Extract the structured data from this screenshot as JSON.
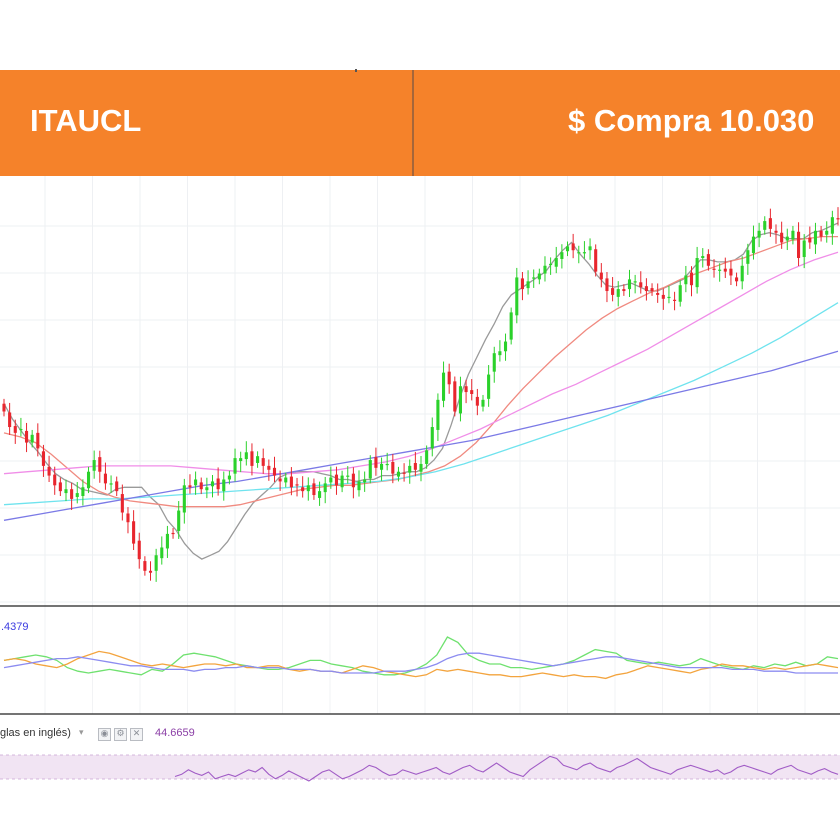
{
  "header": {
    "ticker": "ITAUCL",
    "price_label": "$ Compra 10.030"
  },
  "indicators": {
    "dmi_value": ".4379",
    "rsi_title": "glas en inglés)",
    "rsi_dropdown_icon": "chevron-down-icon",
    "rsi_value": "44.6659",
    "toolbar_icons": [
      "eye-icon",
      "gear-icon",
      "close-icon"
    ]
  },
  "colors": {
    "banner": "#f5822a",
    "up": "#2bd12b",
    "down": "#e8262e",
    "ma_fast": "#9a9a9a",
    "ma_mid": "#f08a80",
    "ma_slow": "#f08ee8",
    "ma_cyan": "#6fe3ee",
    "ma_blue": "#7b7ae6",
    "dmi_plus": "#6fe16f",
    "dmi_minus": "#f3a43e",
    "adx": "#8c8cf0",
    "rsi": "#a15cc6"
  },
  "chart_data": {
    "type": "candlestick",
    "x": [],
    "y_axis_visible": false,
    "grid": true,
    "legend": "none",
    "close": [
      54.6,
      53.8,
      53.5,
      53.7,
      53.0,
      53.4,
      52.7,
      51.8,
      51.3,
      50.8,
      50.5,
      50.6,
      50.1,
      50.4,
      50.7,
      51.5,
      52.1,
      51.5,
      50.9,
      50.9,
      50.5,
      49.4,
      48.9,
      47.8,
      47.0,
      46.4,
      46.3,
      47.2,
      47.6,
      48.3,
      48.3,
      49.5,
      50.8,
      50.7,
      51.1,
      50.6,
      50.7,
      51.0,
      50.6,
      51.1,
      51.3,
      52.2,
      52.2,
      52.5,
      51.8,
      52.3,
      51.8,
      51.6,
      51.3,
      51.0,
      51.2,
      50.7,
      50.8,
      50.5,
      50.8,
      50.3,
      50.5,
      50.9,
      51.2,
      50.8,
      51.3,
      51.3,
      50.7,
      51.0,
      51.1,
      52.1,
      51.7,
      51.9,
      51.9,
      51.4,
      51.5,
      51.4,
      51.8,
      51.6,
      51.9,
      52.6,
      53.8,
      55.2,
      56.6,
      56.0,
      54.6,
      55.9,
      55.6,
      55.5,
      54.9,
      55.2,
      56.5,
      57.6,
      57.7,
      58.2,
      59.7,
      61.5,
      60.9,
      61.3,
      61.5,
      61.7,
      62.1,
      62.2,
      62.5,
      62.8,
      63.1,
      62.9,
      62.8,
      62.8,
      63.1,
      61.8,
      61.4,
      60.8,
      60.6,
      60.9,
      60.8,
      61.4,
      61.3,
      61.0,
      60.8,
      60.8,
      60.6,
      60.4,
      60.5,
      60.3,
      61.1,
      61.6,
      61.1,
      62.5,
      62.6,
      62.1,
      61.9,
      61.9,
      61.8,
      61.6,
      61.3,
      62.1,
      62.9,
      63.6,
      63.9,
      64.4,
      64.0,
      63.8,
      63.3,
      63.6,
      63.9,
      62.5,
      63.4,
      63.3,
      63.9,
      63.6,
      63.9,
      64.6,
      64.5
    ],
    "moving_averages": [
      {
        "values": [
          55.0,
          54.2,
          53.6,
          53.0,
          52.5,
          51.9,
          51.4,
          51.1,
          50.9,
          50.6,
          50.5,
          50.4,
          50.3,
          50.6,
          50.7,
          50.7,
          50.7,
          50.2,
          49.8,
          49.0,
          48.5,
          47.8,
          47.3,
          47.0,
          47.2,
          47.4,
          47.9,
          48.6,
          49.3,
          49.9,
          50.3,
          50.7,
          51.2,
          51.4,
          51.5,
          51.5,
          51.5,
          51.4,
          51.3,
          51.1,
          51.1,
          51.0,
          51.1,
          51.1,
          51.3,
          51.3,
          51.4,
          51.5,
          51.5,
          51.7,
          52.1,
          52.7,
          53.9,
          55.3,
          56.5,
          57.4,
          58.3,
          59.1,
          60.0,
          60.6,
          60.9,
          61.2,
          61.5,
          61.8,
          62.4,
          62.9,
          63.3,
          62.7,
          62.2,
          61.6,
          61.1,
          61.0,
          61.1,
          61.2,
          61.0,
          60.8,
          60.8,
          61.0,
          61.2,
          61.4,
          61.9,
          62.4,
          62.4,
          62.3,
          62.3,
          62.4,
          62.7,
          63.4,
          63.7,
          63.8,
          63.7,
          63.5,
          63.5,
          63.5,
          63.8,
          63.9,
          64.1,
          64.3
        ]
      },
      {
        "values": [
          53.5,
          53.3,
          53.0,
          52.4,
          51.7,
          51.0,
          50.5,
          50.2,
          50.0,
          49.9,
          49.8,
          49.7,
          49.7,
          49.7,
          49.7,
          49.8,
          50.0,
          50.2,
          50.4,
          50.6,
          50.7,
          50.8,
          50.8,
          50.9,
          51.0,
          51.1,
          51.3,
          51.5,
          51.8,
          52.3,
          53.0,
          53.9,
          54.9,
          55.8,
          56.6,
          57.4,
          58.1,
          58.8,
          59.4,
          59.9,
          60.3,
          60.7,
          61.0,
          61.4,
          61.7,
          62.0,
          62.3,
          62.5,
          62.8,
          63.1,
          63.4,
          63.5,
          63.6,
          63.6
        ]
      },
      {
        "values": [
          51.4,
          51.5,
          51.6,
          51.7,
          51.8,
          51.8,
          51.8,
          51.8,
          51.7,
          51.6,
          51.5,
          51.4,
          51.4,
          51.5,
          51.6,
          51.8,
          52.0,
          52.3,
          52.7,
          53.2,
          53.7,
          54.3,
          54.9,
          55.5,
          56.0,
          56.6,
          57.2,
          57.8,
          58.5,
          59.2,
          59.9,
          60.6,
          61.3,
          61.9,
          62.4,
          62.8
        ]
      },
      {
        "values": [
          49.8,
          49.9,
          50.0,
          50.1,
          50.1,
          50.2,
          50.3,
          50.4,
          50.5,
          50.6,
          50.7,
          50.8,
          50.9,
          51.0,
          51.2,
          51.5,
          51.9,
          52.4,
          52.9,
          53.4,
          53.9,
          54.4,
          55.0,
          55.6,
          56.2,
          56.9,
          57.6,
          58.4,
          59.3,
          60.2
        ]
      },
      {
        "values": [
          49.0,
          49.3,
          49.6,
          49.9,
          50.2,
          50.5,
          50.8,
          51.0,
          51.3,
          51.6,
          51.9,
          52.2,
          52.5,
          52.8,
          53.1,
          53.5,
          53.9,
          54.3,
          54.7,
          55.1,
          55.5,
          55.9,
          56.3,
          56.7,
          57.2,
          57.7
        ]
      }
    ],
    "dmi": {
      "plus_di": [
        22,
        23,
        24,
        25,
        24,
        22,
        18,
        16,
        15,
        16,
        17,
        16,
        15,
        14,
        17,
        16,
        20,
        25,
        26,
        25,
        24,
        22,
        20,
        19,
        18,
        17,
        17,
        18,
        20,
        22,
        22,
        20,
        19,
        18,
        16,
        15,
        14,
        14,
        15,
        17,
        20,
        25,
        35,
        32,
        25,
        22,
        20,
        20,
        18,
        18,
        17,
        18,
        19,
        20,
        22,
        25,
        28,
        27,
        26,
        22,
        21,
        20,
        21,
        20,
        19,
        20,
        23,
        21,
        19,
        18,
        17,
        19,
        18,
        20,
        19,
        21,
        19,
        20,
        24,
        23
      ],
      "minus_di": [
        22,
        23,
        22,
        20,
        19,
        18,
        20,
        23,
        25,
        27,
        26,
        24,
        22,
        20,
        19,
        20,
        19,
        18,
        19,
        20,
        20,
        19,
        20,
        18,
        18,
        19,
        19,
        17,
        16,
        17,
        16,
        16,
        15,
        17,
        19,
        18,
        16,
        15,
        14,
        13,
        14,
        17,
        16,
        17,
        16,
        15,
        14,
        14,
        13,
        13,
        14,
        15,
        14,
        13,
        14,
        13,
        13,
        12,
        14,
        15,
        17,
        19,
        18,
        17,
        16,
        15,
        17,
        18,
        20,
        19,
        19,
        18,
        17,
        18,
        17,
        18,
        19,
        20,
        19,
        18
      ],
      "adx": [
        18,
        19,
        20,
        21,
        22,
        23,
        23,
        24,
        23,
        22,
        21,
        20,
        19,
        19,
        18,
        17,
        17,
        17,
        16,
        17,
        17,
        18,
        18,
        19,
        18,
        18,
        18,
        17,
        17,
        17,
        16,
        16,
        15,
        15,
        15,
        15,
        16,
        16,
        16,
        17,
        18,
        20,
        23,
        25,
        26,
        26,
        25,
        24,
        23,
        22,
        21,
        20,
        19,
        20,
        21,
        22,
        23,
        24,
        24,
        23,
        22,
        21,
        20,
        19,
        18,
        18,
        18,
        18,
        18,
        17,
        17,
        17,
        16,
        16,
        16,
        15,
        15,
        15,
        15,
        15
      ],
      "ylim": [
        0,
        40
      ]
    },
    "rsi": {
      "values": [
        42,
        44,
        48,
        45,
        43,
        46,
        40,
        42,
        44,
        42,
        45,
        48,
        46,
        50,
        44,
        40,
        43,
        47,
        44,
        41,
        38,
        42,
        46,
        48,
        44,
        40,
        42,
        45,
        48,
        52,
        50,
        46,
        43,
        44,
        48,
        46,
        44,
        46,
        48,
        50,
        46,
        44,
        47,
        50,
        52,
        48,
        46,
        50,
        54,
        50,
        46,
        44,
        42,
        48,
        52,
        56,
        60,
        58,
        52,
        50,
        48,
        52,
        54,
        50,
        48,
        46,
        50,
        52,
        55,
        58,
        54,
        50,
        48,
        46,
        44,
        48,
        50,
        52,
        50,
        48,
        46,
        48,
        44,
        46,
        50,
        52,
        50,
        48,
        46,
        44,
        48,
        50,
        52,
        48,
        46,
        44,
        47,
        49,
        46,
        44
      ],
      "ylim": [
        30,
        70
      ]
    }
  }
}
